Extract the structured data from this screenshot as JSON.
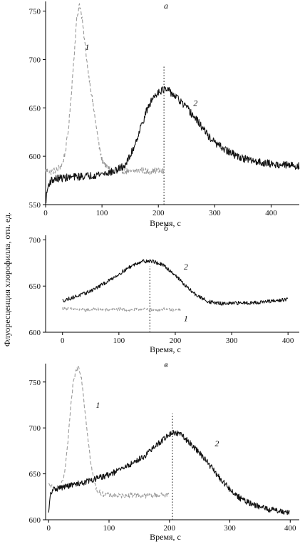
{
  "ylabel": "Флуоресценция хлорофилла, отн. ед.",
  "chart_data": [
    {
      "type": "line",
      "panel": "а",
      "xlabel": "Время, с",
      "xlim": [
        0,
        450
      ],
      "ylim": [
        550,
        760
      ],
      "xticks": [
        0,
        100,
        200,
        300,
        400
      ],
      "yticks": [
        550,
        600,
        650,
        700,
        750
      ],
      "marker_x": 210,
      "series": [
        {
          "name": "1",
          "style": "dashed",
          "color": "#9a9a9a",
          "x": [
            0,
            10,
            20,
            30,
            35,
            40,
            45,
            50,
            55,
            60,
            65,
            70,
            75,
            80,
            85,
            90,
            95,
            100,
            110,
            120,
            130,
            140,
            150,
            160,
            170,
            180,
            190,
            200,
            210
          ],
          "y": [
            585,
            584,
            586,
            592,
            605,
            625,
            660,
            700,
            740,
            758,
            740,
            715,
            690,
            670,
            650,
            630,
            610,
            596,
            588,
            584,
            586,
            585,
            584,
            585,
            586,
            584,
            585,
            585,
            584
          ]
        },
        {
          "name": "2",
          "style": "solid",
          "color": "#111111",
          "x": [
            0,
            3,
            6,
            10,
            20,
            40,
            60,
            80,
            100,
            120,
            140,
            150,
            160,
            170,
            180,
            190,
            200,
            210,
            220,
            230,
            240,
            250,
            260,
            270,
            280,
            290,
            300,
            320,
            340,
            360,
            380,
            400,
            420,
            450
          ],
          "y": [
            552,
            565,
            572,
            575,
            577,
            578,
            579,
            580,
            582,
            584,
            590,
            600,
            615,
            632,
            648,
            660,
            667,
            669,
            667,
            662,
            656,
            650,
            643,
            636,
            628,
            620,
            614,
            606,
            600,
            596,
            594,
            592,
            591,
            590
          ]
        }
      ],
      "annotations": [
        {
          "text": "1",
          "x": 70,
          "y": 710
        },
        {
          "text": "2",
          "x": 262,
          "y": 652
        }
      ]
    },
    {
      "type": "line",
      "panel": "б",
      "xlabel": "Время, с",
      "xlim": [
        -30,
        420
      ],
      "ylim": [
        600,
        705
      ],
      "xticks": [
        0,
        100,
        200,
        300,
        400
      ],
      "yticks": [
        600,
        650,
        700
      ],
      "marker_x": 155,
      "series": [
        {
          "name": "1",
          "style": "dashed",
          "color": "#9a9a9a",
          "x": [
            0,
            20,
            40,
            60,
            80,
            100,
            120,
            140,
            160,
            180,
            200,
            210
          ],
          "y": [
            626,
            625,
            624,
            625,
            624,
            625,
            624,
            625,
            624,
            625,
            624,
            624
          ]
        },
        {
          "name": "2",
          "style": "solid",
          "color": "#111111",
          "x": [
            0,
            20,
            40,
            60,
            80,
            100,
            120,
            140,
            160,
            180,
            200,
            220,
            240,
            260,
            280,
            300,
            320,
            340,
            360,
            380,
            400
          ],
          "y": [
            634,
            638,
            642,
            648,
            655,
            663,
            671,
            677,
            677,
            672,
            662,
            649,
            639,
            633,
            631,
            631,
            632,
            632,
            633,
            634,
            636
          ]
        }
      ],
      "annotations": [
        {
          "text": "1",
          "x": 215,
          "y": 612
        },
        {
          "text": "2",
          "x": 215,
          "y": 668
        }
      ]
    },
    {
      "type": "line",
      "panel": "в",
      "xlabel": "Время, с",
      "xlim": [
        -5,
        415
      ],
      "ylim": [
        600,
        770
      ],
      "xticks": [
        0,
        100,
        200,
        300,
        400
      ],
      "yticks": [
        600,
        650,
        700,
        750
      ],
      "marker_x": 205,
      "series": [
        {
          "name": "1",
          "style": "dashed",
          "color": "#9a9a9a",
          "x": [
            0,
            10,
            20,
            25,
            30,
            35,
            40,
            45,
            50,
            55,
            60,
            65,
            70,
            75,
            80,
            90,
            100,
            120,
            140,
            160,
            180,
            200
          ],
          "y": [
            638,
            634,
            636,
            645,
            670,
            710,
            745,
            762,
            767,
            752,
            720,
            690,
            660,
            642,
            632,
            628,
            627,
            626,
            627,
            626,
            627,
            627
          ]
        },
        {
          "name": "2",
          "style": "solid",
          "color": "#111111",
          "x": [
            0,
            3,
            8,
            20,
            40,
            60,
            80,
            100,
            120,
            140,
            160,
            180,
            200,
            210,
            220,
            240,
            260,
            280,
            300,
            320,
            340,
            360,
            380,
            400
          ],
          "y": [
            606,
            628,
            633,
            635,
            638,
            641,
            645,
            649,
            655,
            662,
            670,
            682,
            693,
            695,
            692,
            680,
            665,
            648,
            633,
            622,
            616,
            612,
            610,
            608
          ]
        }
      ],
      "annotations": [
        {
          "text": "1",
          "x": 78,
          "y": 722
        },
        {
          "text": "2",
          "x": 275,
          "y": 680
        }
      ]
    }
  ]
}
